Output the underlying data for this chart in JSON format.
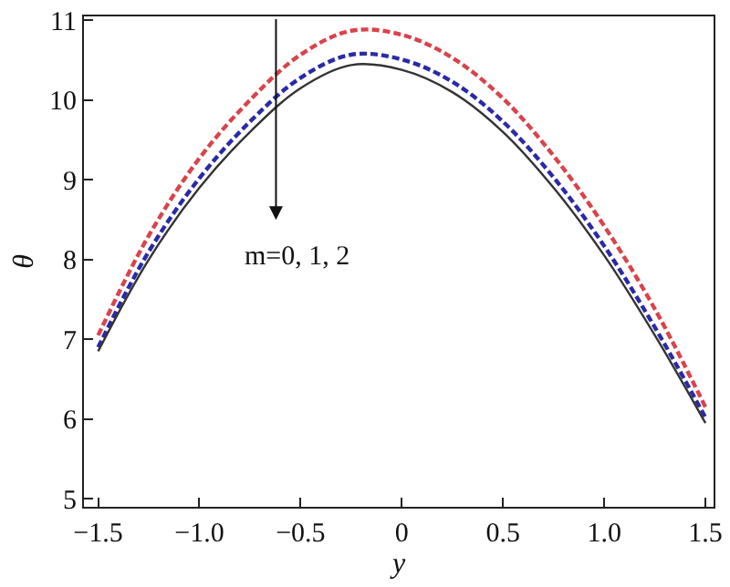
{
  "chart_data": {
    "type": "line",
    "xlabel": "y",
    "ylabel": "θ",
    "x": [
      -1.5,
      -1.25,
      -1.0,
      -0.75,
      -0.5,
      -0.25,
      0,
      0.25,
      0.5,
      0.75,
      1.0,
      1.25,
      1.5
    ],
    "series": [
      {
        "color": "#d9434a",
        "line_style": "dashed",
        "values": [
          7.05,
          8.3,
          9.27,
          10.0,
          10.57,
          10.87,
          10.82,
          10.53,
          10.02,
          9.3,
          8.42,
          7.38,
          6.15
        ]
      },
      {
        "color": "#2a2aa8",
        "line_style": "dashed",
        "values": [
          6.9,
          8.1,
          9.02,
          9.73,
          10.28,
          10.57,
          10.51,
          10.23,
          9.73,
          9.03,
          8.17,
          7.15,
          6.02
        ]
      },
      {
        "color": "#333333",
        "line_style": "solid",
        "values": [
          6.85,
          8.0,
          8.9,
          9.6,
          10.15,
          10.44,
          10.38,
          10.1,
          9.6,
          8.9,
          8.05,
          7.05,
          5.95
        ]
      }
    ],
    "xlim": [
      -1.57,
      1.54
    ],
    "ylim": [
      4.9,
      11.05
    ],
    "xticks": [
      {
        "value": -1.5,
        "label": "−1.5"
      },
      {
        "value": -1.0,
        "label": "−1.0"
      },
      {
        "value": -0.5,
        "label": "−0.5"
      },
      0,
      0.5,
      {
        "value": 1.0,
        "label": "1.0"
      },
      1.5
    ],
    "yticks": [
      5,
      6,
      7,
      8,
      9,
      10,
      11
    ],
    "annotations": [
      "m=0, 1, 2"
    ],
    "marker": "none"
  }
}
